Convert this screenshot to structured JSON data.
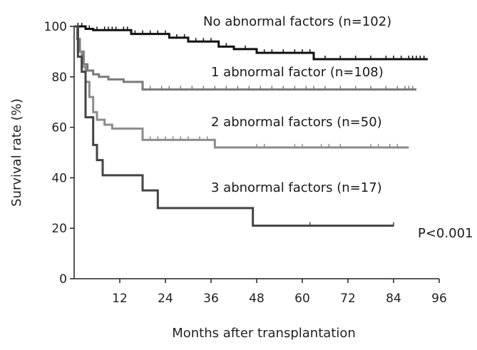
{
  "chart_data": {
    "type": "line",
    "title": "",
    "xlabel": "Months after transplantation",
    "ylabel": "Survival rate (%)",
    "xlim": [
      0,
      96
    ],
    "ylim": [
      0,
      100
    ],
    "xticks": [
      12,
      24,
      36,
      48,
      60,
      72,
      84,
      96
    ],
    "yticks": [
      0,
      20,
      40,
      60,
      80,
      100
    ],
    "grid": false,
    "annotation": "P<0.001",
    "series": [
      {
        "name": "No abnormal factors (n=102)",
        "color": "#111111",
        "x": [
          0,
          3,
          5,
          15,
          25,
          30,
          38,
          42,
          48,
          62,
          63,
          93
        ],
        "y": [
          100,
          99,
          98.5,
          97,
          95.5,
          94,
          92,
          91,
          89.5,
          89.5,
          87,
          87
        ],
        "censored": [
          1,
          2,
          4,
          6,
          8,
          9,
          10,
          11,
          13,
          14,
          16,
          18,
          20,
          22,
          24,
          27,
          29,
          32,
          34,
          36,
          40,
          45,
          50,
          52,
          55,
          58,
          60,
          62,
          66,
          70,
          74,
          78,
          82,
          84,
          86,
          88,
          89,
          90,
          91,
          92
        ]
      },
      {
        "name": "1 abnormal factor (n=108)",
        "color": "#7a7a7a",
        "x": [
          0,
          0.8,
          1.5,
          2.5,
          3.5,
          5,
          6.5,
          9,
          13,
          18,
          90
        ],
        "y": [
          100,
          95,
          90,
          85,
          82.5,
          81,
          80,
          79,
          78,
          75,
          75
        ],
        "censored": [
          20,
          23,
          25,
          28,
          31,
          34,
          37,
          40,
          43,
          46,
          49,
          52,
          55,
          58,
          61,
          63,
          66,
          70,
          74,
          78,
          82,
          85,
          87,
          88,
          89
        ]
      },
      {
        "name": "2 abnormal factors (n=50)",
        "color": "#8c8c8c",
        "x": [
          0,
          1,
          2,
          3,
          4,
          5,
          6,
          8,
          10,
          18,
          25,
          37,
          47,
          88
        ],
        "y": [
          100,
          90,
          84,
          78,
          72,
          66,
          63,
          61,
          59.5,
          55,
          55,
          52,
          52,
          52
        ],
        "censored": [
          20,
          22,
          24,
          26,
          28,
          30,
          33,
          35,
          48,
          50,
          58,
          60,
          65,
          67,
          70,
          78,
          80,
          83,
          85
        ]
      },
      {
        "name": "3 abnormal factors (n=17)",
        "color": "#444444",
        "x": [
          0,
          1,
          2,
          3,
          5,
          6,
          7.5,
          18,
          22,
          47,
          84
        ],
        "y": [
          100,
          88,
          82,
          64,
          53,
          47,
          41,
          35,
          28,
          21,
          21
        ],
        "censored": [
          62,
          84
        ]
      }
    ]
  }
}
